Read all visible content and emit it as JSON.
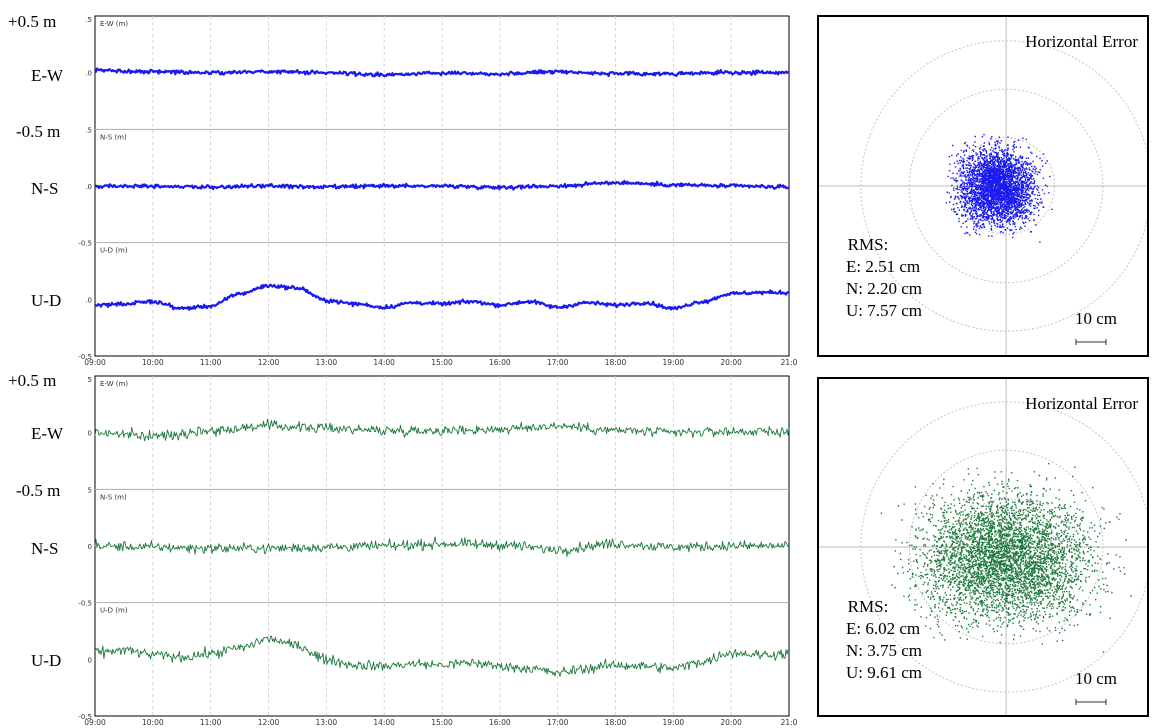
{
  "colors": {
    "top": "#1a1aee",
    "bottom": "#1e7a3c",
    "grid": "#c8c8c8",
    "frame": "#000000"
  },
  "outer_labels": {
    "top": {
      "plus": "+0.5 m",
      "ew": "E-W",
      "minus": "-0.5 m",
      "ns": "N-S",
      "ud": "U-D"
    },
    "bottom": {
      "plus": "+0.5 m",
      "ew": "E-W",
      "minus": "-0.5 m",
      "ns": "N-S",
      "ud": "U-D"
    }
  },
  "chart_data": [
    {
      "type": "line",
      "xlabel_ticks": [
        "09:00",
        "10:00",
        "11:00",
        "12:00",
        "13:00",
        "14:00",
        "15:00",
        "16:00",
        "17:00",
        "18:00",
        "19:00",
        "20:00",
        "21:0"
      ],
      "xlim": [
        "09:00",
        "21:00"
      ],
      "grid": true,
      "panels": [
        {
          "name": "E-W (m)",
          "top_tick": ".5",
          "mid_tick": ".0",
          "bottom_tick": ".5",
          "x": [
            "09:00",
            "10:00",
            "11:00",
            "12:00",
            "13:00",
            "14:00",
            "15:00",
            "16:00",
            "17:00",
            "18:00",
            "19:00",
            "20:00",
            "21:00"
          ],
          "values": [
            0.02,
            0.01,
            0.0,
            0.01,
            0.0,
            -0.02,
            0.0,
            -0.01,
            0.01,
            -0.01,
            -0.01,
            0.0,
            0.0
          ]
        },
        {
          "name": "N-S (m)",
          "top_tick": "",
          "mid_tick": ".0",
          "bottom_tick": "-0.5",
          "x": [
            "09:00",
            "10:00",
            "11:00",
            "12:00",
            "13:00",
            "14:00",
            "15:00",
            "16:00",
            "17:00",
            "18:00",
            "19:00",
            "20:00",
            "21:00"
          ],
          "values": [
            0.0,
            0.0,
            -0.01,
            0.0,
            -0.01,
            0.0,
            0.0,
            -0.01,
            0.0,
            0.03,
            0.01,
            0.0,
            -0.01
          ]
        },
        {
          "name": "U-D (m)",
          "top_tick": "",
          "mid_tick": ".0",
          "bottom_tick": "-0.5",
          "x": [
            "09:00",
            "09:30",
            "10:00",
            "10:30",
            "11:00",
            "11:30",
            "12:00",
            "12:30",
            "13:00",
            "13:30",
            "14:00",
            "14:30",
            "15:00",
            "15:30",
            "16:00",
            "16:30",
            "17:00",
            "17:30",
            "18:00",
            "18:30",
            "19:00",
            "19:30",
            "20:00",
            "20:30",
            "21:00"
          ],
          "values": [
            -0.05,
            -0.04,
            -0.02,
            -0.08,
            -0.06,
            0.05,
            0.12,
            0.1,
            -0.01,
            -0.04,
            -0.07,
            -0.03,
            -0.04,
            -0.02,
            -0.05,
            -0.02,
            -0.07,
            -0.03,
            -0.05,
            -0.03,
            -0.08,
            -0.02,
            0.05,
            0.06,
            0.06
          ]
        }
      ]
    },
    {
      "type": "line",
      "xlabel_ticks": [
        "09:00",
        "10:00",
        "11:00",
        "12:00",
        "13:00",
        "14:00",
        "15:00",
        "16:00",
        "17:00",
        "18:00",
        "19:00",
        "20:00",
        "21:0"
      ],
      "xlim": [
        "09:00",
        "21:00"
      ],
      "grid": true,
      "panels": [
        {
          "name": "E-W (m)",
          "top_tick": "5",
          "mid_tick": "0",
          "bottom_tick": "5",
          "x": [
            "09:00",
            "10:00",
            "11:00",
            "12:00",
            "13:00",
            "14:00",
            "15:00",
            "16:00",
            "17:00",
            "18:00",
            "19:00",
            "20:00",
            "21:00"
          ],
          "values": [
            0.0,
            -0.03,
            0.02,
            0.06,
            0.04,
            0.02,
            0.02,
            0.03,
            0.06,
            0.02,
            0.0,
            0.01,
            0.01
          ]
        },
        {
          "name": "N-S (m)",
          "top_tick": "",
          "mid_tick": "0",
          "bottom_tick": "-0.5",
          "x": [
            "09:00",
            "10:00",
            "11:00",
            "12:00",
            "13:00",
            "14:00",
            "15:00",
            "16:00",
            "17:00",
            "18:00",
            "19:00",
            "20:00",
            "21:00"
          ],
          "values": [
            0.0,
            -0.01,
            -0.02,
            -0.02,
            -0.01,
            0.0,
            0.02,
            0.01,
            -0.03,
            0.02,
            -0.01,
            0.0,
            0.0
          ]
        },
        {
          "name": "U-D (m)",
          "top_tick": "",
          "mid_tick": "0",
          "bottom_tick": "-0.5",
          "x": [
            "09:00",
            "09:30",
            "10:00",
            "10:30",
            "11:00",
            "11:30",
            "12:00",
            "12:30",
            "13:00",
            "13:30",
            "14:00",
            "14:30",
            "15:00",
            "15:30",
            "16:00",
            "16:30",
            "17:00",
            "17:30",
            "18:00",
            "18:30",
            "19:00",
            "19:30",
            "20:00",
            "20:30",
            "21:00"
          ],
          "values": [
            0.06,
            0.08,
            0.04,
            0.02,
            0.05,
            0.1,
            0.18,
            0.12,
            0.0,
            -0.05,
            -0.06,
            -0.04,
            -0.05,
            -0.03,
            -0.06,
            -0.08,
            -0.12,
            -0.08,
            -0.05,
            -0.06,
            -0.08,
            -0.02,
            0.06,
            0.04,
            0.05
          ]
        }
      ]
    },
    {
      "type": "scatter",
      "title": "Horizontal Error",
      "xlim_cm": [
        -30,
        30
      ],
      "ylim_cm": [
        -30,
        30
      ],
      "rings_cm": [
        10,
        20,
        30
      ],
      "center_cm": [
        -2,
        0
      ],
      "spread_cm": [
        3.8,
        3.8
      ],
      "rms_label": "RMS:",
      "rms": [
        "E: 2.51 cm",
        "N: 2.20 cm",
        "U: 7.57 cm"
      ],
      "scale_label": "10 cm"
    },
    {
      "type": "scatter",
      "title": "Horizontal Error",
      "xlim_cm": [
        -30,
        30
      ],
      "ylim_cm": [
        -30,
        30
      ],
      "rings_cm": [
        10,
        20,
        30
      ],
      "center_cm": [
        0,
        -2
      ],
      "spread_cm": [
        8.6,
        6.5
      ],
      "rms_label": "RMS:",
      "rms": [
        "E: 6.02 cm",
        "N: 3.75 cm",
        "U: 9.61 cm"
      ],
      "scale_label": "10 cm"
    }
  ]
}
